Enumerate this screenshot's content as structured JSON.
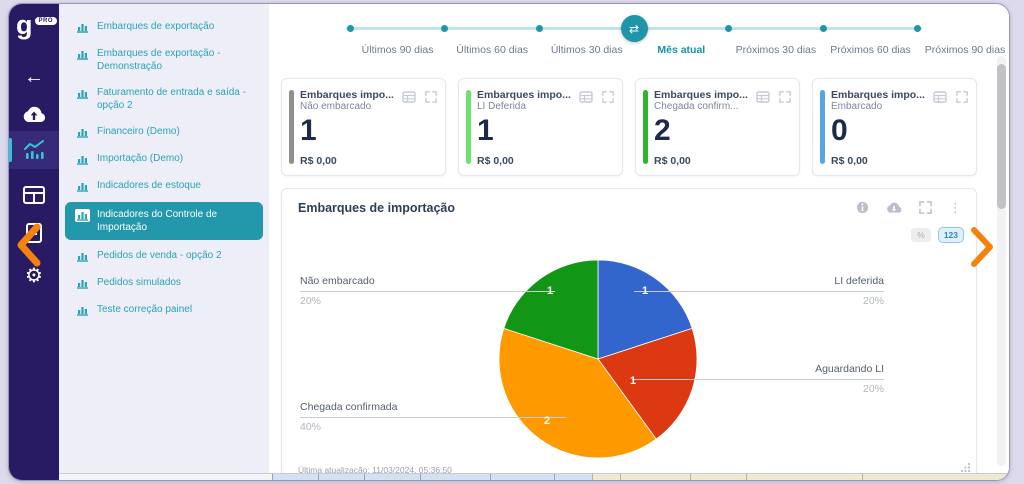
{
  "app": {
    "logo": "g",
    "badge": "PRO"
  },
  "icons": {
    "back": "←",
    "gear": "⚙",
    "swap": "⇄",
    "kebab": "⋮"
  },
  "sidebar": {
    "items": [
      {
        "label": "Embarques de exportação"
      },
      {
        "label": "Embarques de exportação - Demonstração"
      },
      {
        "label": "Faturamento de entrada e saída - opção 2"
      },
      {
        "label": "Financeiro (Demo)"
      },
      {
        "label": "Importação (Demo)"
      },
      {
        "label": "Indicadores de estoque"
      },
      {
        "label": "Indicadores do Controle de Importação"
      },
      {
        "label": "Pedidos de venda - opção 2"
      },
      {
        "label": "Pedidos simulados"
      },
      {
        "label": "Teste correção painel"
      }
    ],
    "active_label": "Indicadores do Controle de Importação"
  },
  "timeline": {
    "options": [
      {
        "label": "Últimos 90 dias"
      },
      {
        "label": "Últimos 60 dias"
      },
      {
        "label": "Últimos 30 dias"
      },
      {
        "label": "Mês atual"
      },
      {
        "label": "Próximos 30 dias"
      },
      {
        "label": "Próximos 60 dias"
      },
      {
        "label": "Próximos 90 dias"
      }
    ],
    "active": "Mês atual"
  },
  "kpi_cards": [
    {
      "title": "Embarques impo...",
      "subtitle": "Não embarcado",
      "value": "1",
      "amount": "R$ 0,00",
      "accent": "#8f8f8f"
    },
    {
      "title": "Embarques impo...",
      "subtitle": "LI Deferida",
      "value": "1",
      "amount": "R$ 0,00",
      "accent": "#6ce26c"
    },
    {
      "title": "Embarques impo...",
      "subtitle": "Chegada confirm...",
      "value": "2",
      "amount": "R$ 0,00",
      "accent": "#2fb42f"
    },
    {
      "title": "Embarques impo...",
      "subtitle": "Embarcado",
      "value": "0",
      "amount": "R$ 0,00",
      "accent": "#58a6e0"
    }
  ],
  "chart_card": {
    "title": "Embarques de importação",
    "toggle_percent": "%",
    "toggle_number": "123",
    "last_update": "Última atualização: 11/03/2024, 05:36:50"
  },
  "chart_data": {
    "type": "pie",
    "title": "Embarques de importação",
    "total": 5,
    "value_labels_shown": true,
    "slices": [
      {
        "label": "LI deferida",
        "value": 1,
        "percent": "20%",
        "color": "#3366cc"
      },
      {
        "label": "Aguardando LI",
        "value": 1,
        "percent": "20%",
        "color": "#dc3912"
      },
      {
        "label": "Chegada confirmada",
        "value": 2,
        "percent": "40%",
        "color": "#ff9900"
      },
      {
        "label": "Não embarcado",
        "value": 1,
        "percent": "20%",
        "color": "#129616"
      }
    ]
  }
}
